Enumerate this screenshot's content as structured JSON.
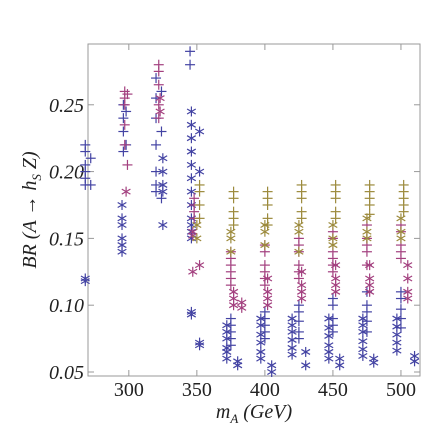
{
  "chart_data": {
    "type": "scatter",
    "x_label": [
      "m",
      "A",
      " (GeV)"
    ],
    "y_label": [
      "BR (A → h",
      "S",
      " Z)"
    ],
    "xlim": [
      270,
      514
    ],
    "ylim": [
      0.047,
      0.2955
    ],
    "xticks": [
      300,
      350,
      400,
      450,
      500
    ],
    "yticks": [
      0.05,
      {
        "value": 0.1,
        "label": "0.10"
      },
      0.15,
      {
        "value": 0.2,
        "label": "0.20"
      },
      0.25
    ],
    "series": [
      {
        "color": "#4343a3",
        "marker": "plus",
        "x": [
          268,
          268,
          268,
          268,
          268,
          268,
          272,
          272,
          296,
          296,
          296,
          296,
          298,
          298,
          320,
          320,
          320,
          320,
          320,
          320,
          320,
          324,
          324,
          324,
          345,
          345,
          375,
          375,
          375,
          375,
          375,
          400,
          400,
          400,
          400,
          400,
          425,
          425,
          425,
          425,
          425,
          450,
          450,
          450,
          450,
          450,
          475,
          475,
          475,
          475,
          475,
          500,
          500,
          500,
          500,
          500
        ],
        "y": [
          0.22,
          0.215,
          0.205,
          0.195,
          0.19,
          0.2,
          0.21,
          0.19,
          0.25,
          0.24,
          0.23,
          0.215,
          0.245,
          0.22,
          0.27,
          0.255,
          0.24,
          0.22,
          0.2,
          0.19,
          0.185,
          0.26,
          0.23,
          0.18,
          0.29,
          0.28,
          0.09,
          0.085,
          0.08,
          0.075,
          0.07,
          0.095,
          0.09,
          0.085,
          0.08,
          0.075,
          0.1,
          0.095,
          0.088,
          0.08,
          0.075,
          0.105,
          0.1,
          0.09,
          0.085,
          0.08,
          0.11,
          0.1,
          0.095,
          0.088,
          0.08,
          0.11,
          0.105,
          0.097,
          0.09,
          0.083
        ]
      },
      {
        "color": "#4343a3",
        "marker": "star",
        "x": [
          268,
          268,
          295,
          295,
          295,
          295,
          295,
          295,
          325,
          325,
          325,
          325,
          325,
          346,
          346,
          346,
          346,
          346,
          346,
          346,
          346,
          346,
          346,
          346,
          346,
          346,
          346,
          352,
          352,
          352,
          352,
          372,
          372,
          372,
          372,
          372,
          372,
          380,
          380,
          397,
          397,
          397,
          397,
          397,
          397,
          405,
          405,
          420,
          420,
          420,
          420,
          420,
          420,
          430,
          430,
          447,
          447,
          447,
          447,
          447,
          447,
          455,
          455,
          472,
          472,
          472,
          472,
          472,
          472,
          480,
          480,
          497,
          497,
          497,
          497,
          497,
          510,
          510
        ],
        "y": [
          0.12,
          0.118,
          0.175,
          0.165,
          0.16,
          0.15,
          0.145,
          0.14,
          0.21,
          0.2,
          0.19,
          0.185,
          0.16,
          0.245,
          0.235,
          0.225,
          0.215,
          0.205,
          0.195,
          0.185,
          0.175,
          0.165,
          0.16,
          0.155,
          0.15,
          0.095,
          0.093,
          0.23,
          0.2,
          0.072,
          0.07,
          0.085,
          0.08,
          0.075,
          0.068,
          0.065,
          0.06,
          0.058,
          0.055,
          0.09,
          0.085,
          0.078,
          0.072,
          0.065,
          0.06,
          0.055,
          0.05,
          0.09,
          0.085,
          0.08,
          0.074,
          0.068,
          0.063,
          0.065,
          0.055,
          0.09,
          0.083,
          0.077,
          0.07,
          0.065,
          0.06,
          0.06,
          0.055,
          0.09,
          0.085,
          0.08,
          0.073,
          0.067,
          0.062,
          0.06,
          0.057,
          0.09,
          0.084,
          0.078,
          0.072,
          0.066,
          0.062,
          0.058
        ]
      },
      {
        "color": "#a3407f",
        "marker": "plus",
        "x": [
          297,
          297,
          297,
          297,
          297,
          299,
          299,
          322,
          322,
          322,
          322,
          322,
          348,
          348,
          348,
          348,
          375,
          375,
          375,
          375,
          375,
          375,
          400,
          400,
          400,
          400,
          400,
          400,
          425,
          425,
          425,
          425,
          425,
          425,
          450,
          450,
          450,
          450,
          450,
          450,
          475,
          475,
          475,
          475,
          475,
          500,
          500,
          500,
          500,
          500
        ],
        "y": [
          0.26,
          0.255,
          0.25,
          0.235,
          0.22,
          0.205,
          0.258,
          0.28,
          0.275,
          0.265,
          0.25,
          0.24,
          0.18,
          0.175,
          0.17,
          0.165,
          0.14,
          0.135,
          0.13,
          0.125,
          0.12,
          0.115,
          0.145,
          0.14,
          0.13,
          0.125,
          0.12,
          0.115,
          0.15,
          0.145,
          0.14,
          0.13,
          0.125,
          0.12,
          0.155,
          0.15,
          0.14,
          0.135,
          0.13,
          0.125,
          0.16,
          0.15,
          0.145,
          0.14,
          0.13,
          0.16,
          0.155,
          0.145,
          0.14,
          0.135
        ]
      },
      {
        "color": "#a3407f",
        "marker": "star",
        "x": [
          298,
          323,
          323,
          347,
          347,
          347,
          352,
          377,
          377,
          377,
          383,
          383,
          402,
          402,
          402,
          402,
          427,
          427,
          427,
          427,
          452,
          452,
          452,
          452,
          477,
          477,
          477,
          477,
          505,
          505,
          505,
          505
        ],
        "y": [
          0.185,
          0.255,
          0.245,
          0.155,
          0.152,
          0.125,
          0.13,
          0.11,
          0.105,
          0.1,
          0.102,
          0.098,
          0.12,
          0.11,
          0.105,
          0.1,
          0.125,
          0.115,
          0.11,
          0.105,
          0.13,
          0.12,
          0.115,
          0.11,
          0.13,
          0.12,
          0.115,
          0.11,
          0.13,
          0.12,
          0.11,
          0.105
        ]
      },
      {
        "color": "#9c8a3c",
        "marker": "plus",
        "x": [
          352,
          352,
          352,
          352,
          377,
          377,
          377,
          377,
          377,
          402,
          402,
          402,
          402,
          402,
          427,
          427,
          427,
          427,
          427,
          452,
          452,
          452,
          452,
          452,
          477,
          477,
          477,
          477,
          477,
          502,
          502,
          502,
          502,
          502
        ],
        "y": [
          0.19,
          0.185,
          0.175,
          0.165,
          0.185,
          0.18,
          0.17,
          0.165,
          0.16,
          0.185,
          0.18,
          0.175,
          0.165,
          0.16,
          0.19,
          0.185,
          0.18,
          0.17,
          0.165,
          0.19,
          0.185,
          0.18,
          0.17,
          0.165,
          0.19,
          0.185,
          0.18,
          0.175,
          0.168,
          0.19,
          0.185,
          0.18,
          0.175,
          0.17
        ]
      },
      {
        "color": "#9c8a3c",
        "marker": "star",
        "x": [
          350,
          350,
          375,
          375,
          375,
          400,
          400,
          400,
          425,
          425,
          425,
          450,
          450,
          450,
          475,
          475,
          475,
          500,
          500,
          500
        ],
        "y": [
          0.16,
          0.15,
          0.155,
          0.15,
          0.14,
          0.16,
          0.155,
          0.145,
          0.16,
          0.155,
          0.14,
          0.16,
          0.15,
          0.145,
          0.165,
          0.155,
          0.15,
          0.165,
          0.155,
          0.15
        ]
      }
    ]
  }
}
